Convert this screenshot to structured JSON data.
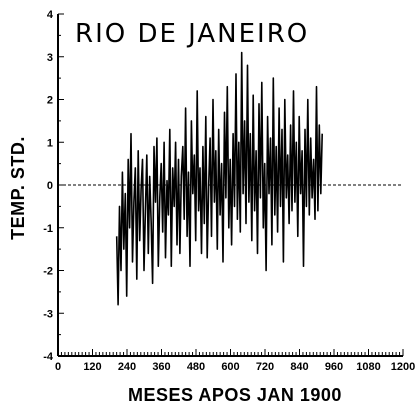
{
  "chart_data": {
    "type": "line",
    "title": "RIO DE JANEIRO",
    "xlabel": "MESES APOS JAN 1900",
    "ylabel": "TEMP. STD.",
    "xlim": [
      0,
      1200
    ],
    "ylim": [
      -4,
      4
    ],
    "xticks": [
      0,
      120,
      240,
      360,
      480,
      600,
      720,
      840,
      960,
      1080,
      1200
    ],
    "yticks": [
      -4,
      -3,
      -2,
      -1,
      0,
      1,
      2,
      3,
      4
    ],
    "reference_line": {
      "y": 0,
      "style": "dashed"
    },
    "grid": false,
    "legend": "none",
    "series": [
      {
        "x_start": 204,
        "x_step": 5,
        "values": [
          -1.2,
          -2.8,
          -0.5,
          -2.0,
          0.3,
          -1.5,
          -0.2,
          -2.6,
          0.6,
          -1.0,
          1.2,
          -1.8,
          -0.4,
          0.4,
          -2.2,
          0.8,
          -1.3,
          -0.1,
          0.6,
          -2.0,
          -0.6,
          0.7,
          -1.6,
          0.2,
          -0.9,
          -2.3,
          0.9,
          -0.4,
          1.1,
          -1.9,
          -0.3,
          0.5,
          -1.1,
          1.0,
          -1.7,
          0.1,
          -0.7,
          1.3,
          -1.9,
          0.4,
          -0.5,
          1.0,
          -1.4,
          0.6,
          -1.6,
          0.2,
          0.9,
          -0.8,
          1.8,
          -1.2,
          0.3,
          -1.9,
          1.5,
          -0.2,
          0.7,
          -1.3,
          2.2,
          -0.6,
          0.4,
          -1.6,
          0.9,
          -0.9,
          1.6,
          -1.7,
          0.0,
          1.1,
          -1.2,
          2.0,
          -0.4,
          0.8,
          -1.5,
          1.3,
          -0.7,
          0.5,
          -1.8,
          1.7,
          -0.3,
          2.3,
          -1.0,
          0.6,
          -1.4,
          1.2,
          -0.5,
          2.6,
          -0.8,
          1.0,
          -1.1,
          3.1,
          -0.2,
          1.5,
          -0.9,
          2.8,
          -0.4,
          1.2,
          -1.3,
          2.1,
          -0.6,
          0.8,
          -1.6,
          1.9,
          -0.3,
          2.4,
          -1.0,
          0.5,
          -2.0,
          1.6,
          -0.2,
          1.1,
          -1.4,
          2.5,
          -0.7,
          0.9,
          -1.1,
          1.8,
          -0.5,
          1.3,
          -1.8,
          2.0,
          -0.3,
          0.7,
          -0.9,
          1.4,
          -0.6,
          2.2,
          -0.4,
          1.0,
          -1.2,
          1.6,
          -0.2,
          0.8,
          -1.9,
          1.3,
          -0.5,
          2.0,
          -0.7,
          1.1,
          -0.3,
          0.6,
          -0.8,
          2.3,
          -0.6,
          1.4,
          -0.2,
          1.2
        ]
      }
    ]
  }
}
